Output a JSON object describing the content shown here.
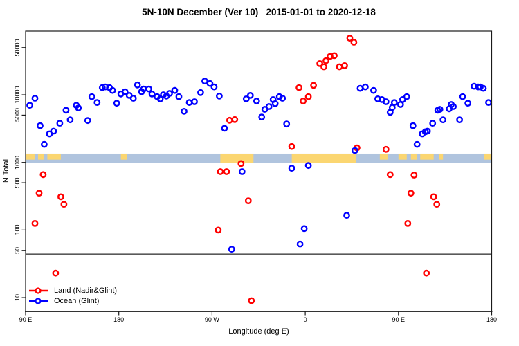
{
  "title": "5N-10N December (Ver 10)   2015-01-01 to 2020-12-18",
  "chart_data": {
    "type": "scatter",
    "title": "5N-10N December (Ver 10)   2015-01-01 to 2020-12-18",
    "xlabel": "Longitude (deg E)",
    "ylabel": "N Total",
    "x_axis": {
      "note": "longitude wrapped starting at 90E; axis coordinate in degrees 90..540",
      "range": [
        90,
        540
      ],
      "ticks": [
        {
          "label": "90 E",
          "deg": 90
        },
        {
          "label": "180",
          "deg": 180
        },
        {
          "label": "90 W",
          "deg": 270
        },
        {
          "label": "0",
          "deg": 360
        },
        {
          "label": "90 E",
          "deg": 450
        },
        {
          "label": "180",
          "deg": 540
        }
      ]
    },
    "y_axis": {
      "scale": "log",
      "range": [
        6.3,
        87000
      ],
      "ticks": [
        50000,
        10000,
        5000,
        1000,
        500,
        100,
        50,
        10
      ],
      "grid": false
    },
    "cutoff_line_value": 44,
    "land_ocean_strip": {
      "ocean_color": "#b0c4de",
      "land_color": "#fbd671",
      "value_from": 970,
      "value_to": 1350,
      "land_segments": [
        {
          "from": 90,
          "to": 99,
          "full": false
        },
        {
          "from": 102,
          "to": 108,
          "full": false
        },
        {
          "from": 111,
          "to": 124,
          "full": false
        },
        {
          "from": 182,
          "to": 188,
          "full": false
        },
        {
          "from": 278,
          "to": 310,
          "full": true
        },
        {
          "from": 347,
          "to": 409,
          "full": true
        },
        {
          "from": 432,
          "to": 440,
          "full": false
        },
        {
          "from": 450,
          "to": 458,
          "full": false
        },
        {
          "from": 462,
          "to": 468,
          "full": false
        },
        {
          "from": 471,
          "to": 484,
          "full": false
        },
        {
          "from": 489,
          "to": 493,
          "full": false
        },
        {
          "from": 533,
          "to": 540,
          "full": false
        }
      ]
    },
    "legend_position": "bottom-left",
    "series": [
      {
        "name": "Land (Nadir&Glint)",
        "color": "#ff0000",
        "points": [
          [
            287,
            4200
          ],
          [
            292,
            4300
          ],
          [
            278,
            730
          ],
          [
            284,
            730
          ],
          [
            298,
            960
          ],
          [
            305,
            270
          ],
          [
            276,
            100
          ],
          [
            308,
            9
          ],
          [
            119,
            23
          ],
          [
            477,
            23
          ],
          [
            99,
            125
          ],
          [
            459,
            125
          ],
          [
            107,
            660
          ],
          [
            442,
            660
          ],
          [
            465,
            650
          ],
          [
            103,
            350
          ],
          [
            462,
            350
          ],
          [
            124,
            310
          ],
          [
            484,
            310
          ],
          [
            127,
            240
          ],
          [
            487,
            240
          ],
          [
            347,
            1720
          ],
          [
            410,
            1640
          ],
          [
            438,
            1560
          ],
          [
            354,
            12800
          ],
          [
            368,
            13800
          ],
          [
            358,
            8100
          ],
          [
            363,
            9400
          ],
          [
            374,
            29000
          ],
          [
            378,
            26000
          ],
          [
            380,
            32000
          ],
          [
            384,
            37000
          ],
          [
            388,
            38000
          ],
          [
            393,
            26000
          ],
          [
            398,
            27000
          ],
          [
            403,
            69000
          ],
          [
            407,
            60000
          ]
        ]
      },
      {
        "name": "Ocean (Glint)",
        "color": "#0000ff",
        "points": [
          [
            94,
            7000
          ],
          [
            99,
            8900
          ],
          [
            104,
            3500
          ],
          [
            108,
            1850
          ],
          [
            113,
            2640
          ],
          [
            117,
            2900
          ],
          [
            123,
            3800
          ],
          [
            129,
            5900
          ],
          [
            133,
            4260
          ],
          [
            139,
            7000
          ],
          [
            141,
            6400
          ],
          [
            150,
            4160
          ],
          [
            154,
            9400
          ],
          [
            159,
            7700
          ],
          [
            164,
            12800
          ],
          [
            167,
            13100
          ],
          [
            171,
            12800
          ],
          [
            174,
            11600
          ],
          [
            178,
            7500
          ],
          [
            182,
            10300
          ],
          [
            186,
            11100
          ],
          [
            190,
            9800
          ],
          [
            194,
            8900
          ],
          [
            198,
            14000
          ],
          [
            202,
            11100
          ],
          [
            204,
            12200
          ],
          [
            209,
            12200
          ],
          [
            212,
            10300
          ],
          [
            217,
            9400
          ],
          [
            220,
            8700
          ],
          [
            223,
            10000
          ],
          [
            226,
            9600
          ],
          [
            229,
            10500
          ],
          [
            234,
            11600
          ],
          [
            238,
            9400
          ],
          [
            243,
            5700
          ],
          [
            248,
            7700
          ],
          [
            253,
            7900
          ],
          [
            259,
            10800
          ],
          [
            263,
            16000
          ],
          [
            268,
            14700
          ],
          [
            272,
            13100
          ],
          [
            277,
            9600
          ],
          [
            282,
            3200
          ],
          [
            289,
            52
          ],
          [
            299,
            730
          ],
          [
            303,
            8700
          ],
          [
            307,
            9800
          ],
          [
            313,
            8100
          ],
          [
            318,
            4700
          ],
          [
            321,
            6100
          ],
          [
            325,
            6700
          ],
          [
            329,
            8500
          ],
          [
            331,
            7400
          ],
          [
            335,
            9400
          ],
          [
            338,
            8900
          ],
          [
            342,
            3700
          ],
          [
            347,
            820
          ],
          [
            355,
            62
          ],
          [
            359,
            105
          ],
          [
            363,
            900
          ],
          [
            400,
            165
          ],
          [
            408,
            1500
          ],
          [
            413,
            12500
          ],
          [
            418,
            13100
          ],
          [
            426,
            11600
          ],
          [
            430,
            8700
          ],
          [
            434,
            8500
          ],
          [
            438,
            7900
          ],
          [
            442,
            5500
          ],
          [
            444,
            6500
          ],
          [
            446,
            7700
          ],
          [
            452,
            7200
          ],
          [
            454,
            8500
          ],
          [
            458,
            9400
          ],
          [
            464,
            3500
          ],
          [
            468,
            1850
          ],
          [
            473,
            2640
          ],
          [
            476,
            2840
          ],
          [
            478,
            2900
          ],
          [
            483,
            3800
          ],
          [
            488,
            5900
          ],
          [
            490,
            6100
          ],
          [
            493,
            4260
          ],
          [
            499,
            6200
          ],
          [
            501,
            7200
          ],
          [
            503,
            6700
          ],
          [
            509,
            4260
          ],
          [
            512,
            9400
          ],
          [
            517,
            7500
          ],
          [
            523,
            13400
          ],
          [
            527,
            13100
          ],
          [
            529,
            13100
          ],
          [
            532,
            12500
          ],
          [
            537,
            7700
          ]
        ]
      }
    ]
  }
}
